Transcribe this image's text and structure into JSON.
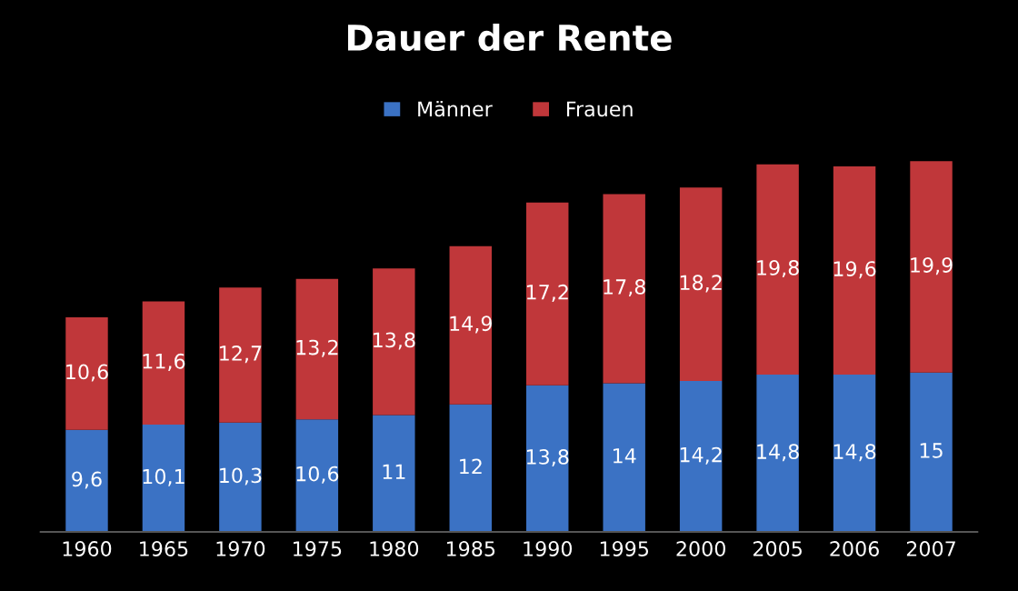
{
  "chart_data": {
    "type": "bar",
    "title": "Dauer der Rente",
    "stacked": true,
    "legend": "top",
    "grid": false,
    "categories": [
      "1960",
      "1965",
      "1970",
      "1975",
      "1980",
      "1985",
      "1990",
      "1995",
      "2000",
      "2005",
      "2006",
      "2007"
    ],
    "series": [
      {
        "name": "Männer",
        "color": "#3b72c4",
        "values": [
          9.6,
          10.1,
          10.3,
          10.6,
          11,
          12,
          13.8,
          14,
          14.2,
          14.8,
          14.8,
          15
        ],
        "value_labels": [
          "9,6",
          "10,1",
          "10,3",
          "10,6",
          "11",
          "12",
          "13,8",
          "14",
          "14,2",
          "14,8",
          "14,8",
          "15"
        ]
      },
      {
        "name": "Frauen",
        "color": "#c0373a",
        "values": [
          10.6,
          11.6,
          12.7,
          13.2,
          13.8,
          14.9,
          17.2,
          17.8,
          18.2,
          19.8,
          19.6,
          19.9
        ],
        "value_labels": [
          "10,6",
          "11,6",
          "12,7",
          "13,2",
          "13,8",
          "14,9",
          "17,2",
          "17,8",
          "18,2",
          "19,8",
          "19,6",
          "19,9"
        ]
      }
    ]
  }
}
